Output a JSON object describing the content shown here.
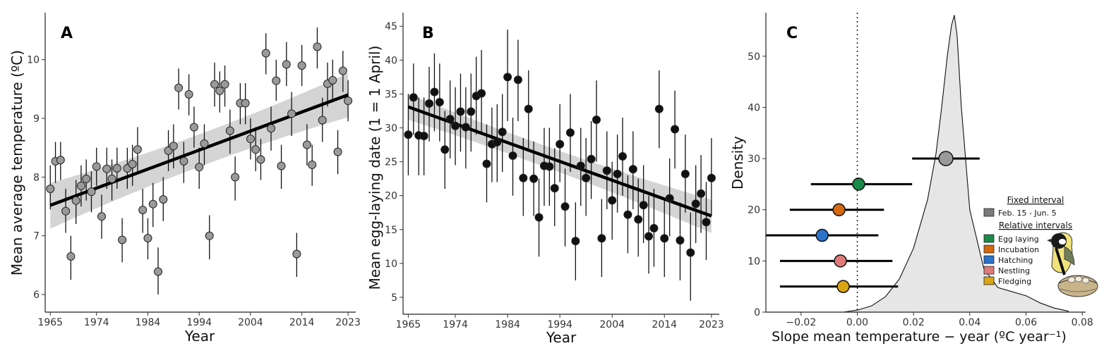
{
  "chart_data": [
    {
      "panel_label": "A",
      "type": "scatter",
      "xlabel": "Year",
      "ylabel": "Mean average temperature (ºC)",
      "xlim": [
        1964,
        2024.5
      ],
      "ylim": [
        5.7,
        10.8
      ],
      "xticks": [
        1965,
        1974,
        1984,
        1994,
        2004,
        2014,
        2023
      ],
      "yticks": [
        6,
        7,
        8,
        9,
        10
      ],
      "points": [
        {
          "x": 1965,
          "y": 7.8,
          "lo": 7.45,
          "hi": 8.2
        },
        {
          "x": 1966,
          "y": 8.27,
          "lo": 7.9,
          "hi": 8.6
        },
        {
          "x": 1967,
          "y": 8.29,
          "lo": 7.95,
          "hi": 8.6
        },
        {
          "x": 1968,
          "y": 7.42,
          "lo": 7.05,
          "hi": 7.8
        },
        {
          "x": 1969,
          "y": 6.65,
          "lo": 6.25,
          "hi": 7.0
        },
        {
          "x": 1970,
          "y": 7.6,
          "lo": 7.2,
          "hi": 7.95
        },
        {
          "x": 1971,
          "y": 7.85,
          "lo": 7.5,
          "hi": 8.2
        },
        {
          "x": 1972,
          "y": 7.97,
          "lo": 7.6,
          "hi": 8.3
        },
        {
          "x": 1973,
          "y": 7.75,
          "lo": 7.4,
          "hi": 8.1
        },
        {
          "x": 1974,
          "y": 8.18,
          "lo": 7.85,
          "hi": 8.5
        },
        {
          "x": 1975,
          "y": 7.33,
          "lo": 6.95,
          "hi": 7.7
        },
        {
          "x": 1976,
          "y": 8.14,
          "lo": 7.8,
          "hi": 8.5
        },
        {
          "x": 1977,
          "y": 7.97,
          "lo": 7.6,
          "hi": 8.3
        },
        {
          "x": 1978,
          "y": 8.15,
          "lo": 7.8,
          "hi": 8.5
        },
        {
          "x": 1979,
          "y": 6.93,
          "lo": 6.55,
          "hi": 7.3
        },
        {
          "x": 1980,
          "y": 8.15,
          "lo": 7.8,
          "hi": 8.5
        },
        {
          "x": 1981,
          "y": 8.22,
          "lo": 7.85,
          "hi": 8.55
        },
        {
          "x": 1982,
          "y": 8.47,
          "lo": 8.1,
          "hi": 8.85
        },
        {
          "x": 1983,
          "y": 7.44,
          "lo": 7.05,
          "hi": 7.8
        },
        {
          "x": 1984,
          "y": 6.96,
          "lo": 6.6,
          "hi": 7.3
        },
        {
          "x": 1985,
          "y": 7.54,
          "lo": 7.15,
          "hi": 7.9
        },
        {
          "x": 1986,
          "y": 6.39,
          "lo": 6.0,
          "hi": 6.8
        },
        {
          "x": 1987,
          "y": 7.62,
          "lo": 7.25,
          "hi": 8.0
        },
        {
          "x": 1988,
          "y": 8.45,
          "lo": 8.1,
          "hi": 8.8
        },
        {
          "x": 1989,
          "y": 8.53,
          "lo": 8.15,
          "hi": 8.9
        },
        {
          "x": 1990,
          "y": 9.52,
          "lo": 9.15,
          "hi": 9.85
        },
        {
          "x": 1991,
          "y": 8.27,
          "lo": 7.9,
          "hi": 8.6
        },
        {
          "x": 1992,
          "y": 9.41,
          "lo": 9.05,
          "hi": 9.75
        },
        {
          "x": 1993,
          "y": 8.85,
          "lo": 8.5,
          "hi": 9.2
        },
        {
          "x": 1994,
          "y": 8.17,
          "lo": 7.8,
          "hi": 8.5
        },
        {
          "x": 1995,
          "y": 8.57,
          "lo": 8.2,
          "hi": 8.9
        },
        {
          "x": 1996,
          "y": 7.0,
          "lo": 6.6,
          "hi": 7.35
        },
        {
          "x": 1997,
          "y": 9.58,
          "lo": 9.2,
          "hi": 9.95
        },
        {
          "x": 1998,
          "y": 9.47,
          "lo": 9.1,
          "hi": 9.8
        },
        {
          "x": 1999,
          "y": 9.58,
          "lo": 9.2,
          "hi": 9.9
        },
        {
          "x": 2000,
          "y": 8.79,
          "lo": 8.4,
          "hi": 9.15
        },
        {
          "x": 2001,
          "y": 8.0,
          "lo": 7.6,
          "hi": 8.35
        },
        {
          "x": 2002,
          "y": 9.26,
          "lo": 8.9,
          "hi": 9.6
        },
        {
          "x": 2003,
          "y": 9.26,
          "lo": 8.9,
          "hi": 9.6
        },
        {
          "x": 2004,
          "y": 8.65,
          "lo": 8.3,
          "hi": 9.0
        },
        {
          "x": 2005,
          "y": 8.47,
          "lo": 8.1,
          "hi": 8.85
        },
        {
          "x": 2006,
          "y": 8.3,
          "lo": 7.95,
          "hi": 8.65
        },
        {
          "x": 2007,
          "y": 10.11,
          "lo": 9.75,
          "hi": 10.45
        },
        {
          "x": 2008,
          "y": 8.83,
          "lo": 8.45,
          "hi": 9.2
        },
        {
          "x": 2009,
          "y": 9.64,
          "lo": 9.3,
          "hi": 10.0
        },
        {
          "x": 2010,
          "y": 8.19,
          "lo": 7.8,
          "hi": 8.55
        },
        {
          "x": 2011,
          "y": 9.92,
          "lo": 9.55,
          "hi": 10.3
        },
        {
          "x": 2012,
          "y": 9.08,
          "lo": 8.7,
          "hi": 9.45
        },
        {
          "x": 2013,
          "y": 6.69,
          "lo": 6.3,
          "hi": 7.05
        },
        {
          "x": 2014,
          "y": 9.9,
          "lo": 9.55,
          "hi": 10.25
        },
        {
          "x": 2015,
          "y": 8.55,
          "lo": 8.2,
          "hi": 8.9
        },
        {
          "x": 2016,
          "y": 8.21,
          "lo": 7.85,
          "hi": 8.55
        },
        {
          "x": 2017,
          "y": 10.22,
          "lo": 9.85,
          "hi": 10.55
        },
        {
          "x": 2018,
          "y": 8.97,
          "lo": 8.6,
          "hi": 9.35
        },
        {
          "x": 2019,
          "y": 9.59,
          "lo": 9.2,
          "hi": 9.95
        },
        {
          "x": 2020,
          "y": 9.65,
          "lo": 9.3,
          "hi": 10.0
        },
        {
          "x": 2021,
          "y": 8.43,
          "lo": 8.05,
          "hi": 8.8
        },
        {
          "x": 2022,
          "y": 9.81,
          "lo": 9.45,
          "hi": 10.15
        },
        {
          "x": 2023,
          "y": 9.3,
          "lo": 8.95,
          "hi": 9.65
        }
      ],
      "trend": {
        "x0": 1965,
        "y0": 7.52,
        "x1": 2023,
        "y1": 9.4,
        "ci_lo0": 7.12,
        "ci_hi0": 7.9,
        "ci_lo1": 9.02,
        "ci_hi1": 9.77,
        "ci_lo_mid": 8.28,
        "ci_hi_mid": 8.62
      },
      "point_fill": "#9a9a9a"
    },
    {
      "panel_label": "B",
      "type": "scatter",
      "xlabel": "Year",
      "ylabel": "Mean egg-laying date (1 = 1 April)",
      "xlim": [
        1964,
        2024.5
      ],
      "ylim": [
        2.5,
        47
      ],
      "xticks": [
        1965,
        1974,
        1984,
        1994,
        2004,
        2014,
        2023
      ],
      "yticks": [
        5,
        10,
        15,
        20,
        25,
        30,
        35,
        40,
        45
      ],
      "points": [
        {
          "x": 1965,
          "y": 29.0,
          "lo": 23,
          "hi": 35
        },
        {
          "x": 1966,
          "y": 34.5,
          "lo": 29,
          "hi": 39.5
        },
        {
          "x": 1967,
          "y": 28.9,
          "lo": 23,
          "hi": 34.5
        },
        {
          "x": 1968,
          "y": 28.8,
          "lo": 23,
          "hi": 34.5
        },
        {
          "x": 1969,
          "y": 33.6,
          "lo": 28,
          "hi": 39
        },
        {
          "x": 1970,
          "y": 35.3,
          "lo": 29.5,
          "hi": 41
        },
        {
          "x": 1971,
          "y": 33.8,
          "lo": 28,
          "hi": 39.5
        },
        {
          "x": 1972,
          "y": 26.8,
          "lo": 21,
          "hi": 32.5
        },
        {
          "x": 1973,
          "y": 31.3,
          "lo": 25.5,
          "hi": 37
        },
        {
          "x": 1974,
          "y": 30.3,
          "lo": 24.5,
          "hi": 36
        },
        {
          "x": 1975,
          "y": 32.4,
          "lo": 26.5,
          "hi": 38
        },
        {
          "x": 1976,
          "y": 30.1,
          "lo": 24,
          "hi": 36
        },
        {
          "x": 1977,
          "y": 32.4,
          "lo": 26.5,
          "hi": 38
        },
        {
          "x": 1978,
          "y": 34.7,
          "lo": 29,
          "hi": 40.5
        },
        {
          "x": 1979,
          "y": 35.1,
          "lo": 29,
          "hi": 41.5
        },
        {
          "x": 1980,
          "y": 24.7,
          "lo": 19,
          "hi": 30.5
        },
        {
          "x": 1981,
          "y": 27.6,
          "lo": 22,
          "hi": 33
        },
        {
          "x": 1982,
          "y": 27.9,
          "lo": 22,
          "hi": 33.5
        },
        {
          "x": 1983,
          "y": 29.4,
          "lo": 23.5,
          "hi": 35
        },
        {
          "x": 1984,
          "y": 37.5,
          "lo": 31,
          "hi": 44.5
        },
        {
          "x": 1985,
          "y": 25.9,
          "lo": 20,
          "hi": 31.5
        },
        {
          "x": 1986,
          "y": 37.1,
          "lo": 31,
          "hi": 43
        },
        {
          "x": 1987,
          "y": 22.6,
          "lo": 17,
          "hi": 28.5
        },
        {
          "x": 1988,
          "y": 32.8,
          "lo": 27,
          "hi": 38.5
        },
        {
          "x": 1989,
          "y": 22.5,
          "lo": 17,
          "hi": 28
        },
        {
          "x": 1990,
          "y": 16.8,
          "lo": 11,
          "hi": 22.5
        },
        {
          "x": 1991,
          "y": 24.4,
          "lo": 18.5,
          "hi": 30
        },
        {
          "x": 1992,
          "y": 24.3,
          "lo": 18.5,
          "hi": 30
        },
        {
          "x": 1993,
          "y": 21.1,
          "lo": 15.5,
          "hi": 27
        },
        {
          "x": 1994,
          "y": 27.6,
          "lo": 22,
          "hi": 33.5
        },
        {
          "x": 1995,
          "y": 18.4,
          "lo": 12.5,
          "hi": 24
        },
        {
          "x": 1996,
          "y": 29.3,
          "lo": 23.5,
          "hi": 35
        },
        {
          "x": 1997,
          "y": 13.3,
          "lo": 7.5,
          "hi": 19
        },
        {
          "x": 1998,
          "y": 24.4,
          "lo": 18.5,
          "hi": 30
        },
        {
          "x": 1999,
          "y": 22.6,
          "lo": 17,
          "hi": 28.5
        },
        {
          "x": 2000,
          "y": 25.4,
          "lo": 19.5,
          "hi": 31
        },
        {
          "x": 2001,
          "y": 31.2,
          "lo": 25,
          "hi": 37
        },
        {
          "x": 2002,
          "y": 13.7,
          "lo": 8,
          "hi": 19.5
        },
        {
          "x": 2003,
          "y": 23.7,
          "lo": 18,
          "hi": 29.5
        },
        {
          "x": 2004,
          "y": 19.3,
          "lo": 13.5,
          "hi": 25
        },
        {
          "x": 2005,
          "y": 23.2,
          "lo": 17.5,
          "hi": 29
        },
        {
          "x": 2006,
          "y": 25.8,
          "lo": 20,
          "hi": 31.5
        },
        {
          "x": 2007,
          "y": 17.2,
          "lo": 11.5,
          "hi": 23
        },
        {
          "x": 2008,
          "y": 23.9,
          "lo": 18,
          "hi": 29.5
        },
        {
          "x": 2009,
          "y": 16.5,
          "lo": 11,
          "hi": 22.5
        },
        {
          "x": 2010,
          "y": 18.6,
          "lo": 13,
          "hi": 24.5
        },
        {
          "x": 2011,
          "y": 14.0,
          "lo": 8.5,
          "hi": 20
        },
        {
          "x": 2012,
          "y": 15.2,
          "lo": 9.5,
          "hi": 21
        },
        {
          "x": 2013,
          "y": 32.8,
          "lo": 27,
          "hi": 38.5
        },
        {
          "x": 2014,
          "y": 13.7,
          "lo": 8,
          "hi": 19.5
        },
        {
          "x": 2015,
          "y": 19.6,
          "lo": 14,
          "hi": 25.5
        },
        {
          "x": 2016,
          "y": 29.8,
          "lo": 24,
          "hi": 35.5
        },
        {
          "x": 2017,
          "y": 13.4,
          "lo": 7.5,
          "hi": 19
        },
        {
          "x": 2018,
          "y": 23.2,
          "lo": 17.5,
          "hi": 29
        },
        {
          "x": 2019,
          "y": 11.6,
          "lo": 4.5,
          "hi": 17.5
        },
        {
          "x": 2020,
          "y": 18.8,
          "lo": 13,
          "hi": 24.5
        },
        {
          "x": 2021,
          "y": 20.3,
          "lo": 14.5,
          "hi": 26
        },
        {
          "x": 2022,
          "y": 16.1,
          "lo": 10.5,
          "hi": 22
        },
        {
          "x": 2023,
          "y": 22.6,
          "lo": 17,
          "hi": 28.5
        }
      ],
      "trend": {
        "x0": 1965,
        "y0": 33.1,
        "x1": 2023,
        "y1": 17.0,
        "ci_lo0": 31.2,
        "ci_hi0": 35.0,
        "ci_lo1": 14.5,
        "ci_hi1": 19.4,
        "ci_lo_mid": 24.0,
        "ci_hi_mid": 26.0
      },
      "point_fill": "#111111"
    },
    {
      "panel_label": "C",
      "type": "area",
      "xlabel": "Slope mean temperature − year (ºC year⁻¹)",
      "ylabel": "Density",
      "xlim": [
        -0.0325,
        0.0812
      ],
      "ylim": [
        0,
        58.5
      ],
      "xticks": [
        -0.02,
        0.0,
        0.02,
        0.04,
        0.06,
        0.08
      ],
      "xtick_labels": [
        "−0.02",
        "0.00",
        "0.02",
        "0.04",
        "0.06",
        "0.08"
      ],
      "yticks": [
        0,
        10,
        20,
        30,
        40,
        50
      ],
      "reference_line_x": 0,
      "density": {
        "x": [
          -0.005,
          0.0,
          0.005,
          0.01,
          0.015,
          0.02,
          0.025,
          0.028,
          0.03,
          0.032,
          0.0335,
          0.0345,
          0.0355,
          0.037,
          0.04,
          0.045,
          0.05,
          0.055,
          0.06,
          0.065,
          0.07,
          0.075
        ],
        "y": [
          0,
          0.4,
          1.2,
          3,
          6.5,
          12.5,
          22,
          31,
          40,
          50,
          56,
          58,
          54,
          40,
          20,
          8.5,
          4.8,
          4.0,
          3.2,
          1.8,
          0.8,
          0.2
        ],
        "fill": "#e6e6e6"
      },
      "estimates": [
        {
          "name": "Feb. 15 - Jun. 5",
          "y": 30,
          "x": 0.0315,
          "lo": 0.0195,
          "hi": 0.0435,
          "color": "#9a9a9a"
        },
        {
          "name": "Egg laying",
          "y": 25,
          "x": 0.0005,
          "lo": -0.0165,
          "hi": 0.0195,
          "color": "#1a8a4a"
        },
        {
          "name": "Incubation",
          "y": 20,
          "x": -0.0065,
          "lo": -0.024,
          "hi": 0.0095,
          "color": "#d4690f"
        },
        {
          "name": "Hatching",
          "y": 15,
          "x": -0.0125,
          "lo": -0.0325,
          "hi": 0.0075,
          "color": "#2b72c9"
        },
        {
          "name": "Nestling",
          "y": 10,
          "x": -0.006,
          "lo": -0.0275,
          "hi": 0.0125,
          "color": "#e07b7b"
        },
        {
          "name": "Fledging",
          "y": 5,
          "x": -0.005,
          "lo": -0.0275,
          "hi": 0.0145,
          "color": "#d9a514"
        }
      ],
      "legend": {
        "position": "right",
        "fixed_title": "Fixed interval",
        "fixed_items": [
          {
            "label": "Feb. 15 - Jun. 5",
            "color": "#7a7a7a"
          }
        ],
        "relative_title": "Relative intervals",
        "relative_items": [
          {
            "label": "Egg laying",
            "color": "#1a8a4a"
          },
          {
            "label": "Incubation",
            "color": "#d4690f"
          },
          {
            "label": "Hatching",
            "color": "#2b72c9"
          },
          {
            "label": "Nestling",
            "color": "#e07b7b"
          },
          {
            "label": "Fledging",
            "color": "#d9a514"
          }
        ]
      }
    }
  ]
}
